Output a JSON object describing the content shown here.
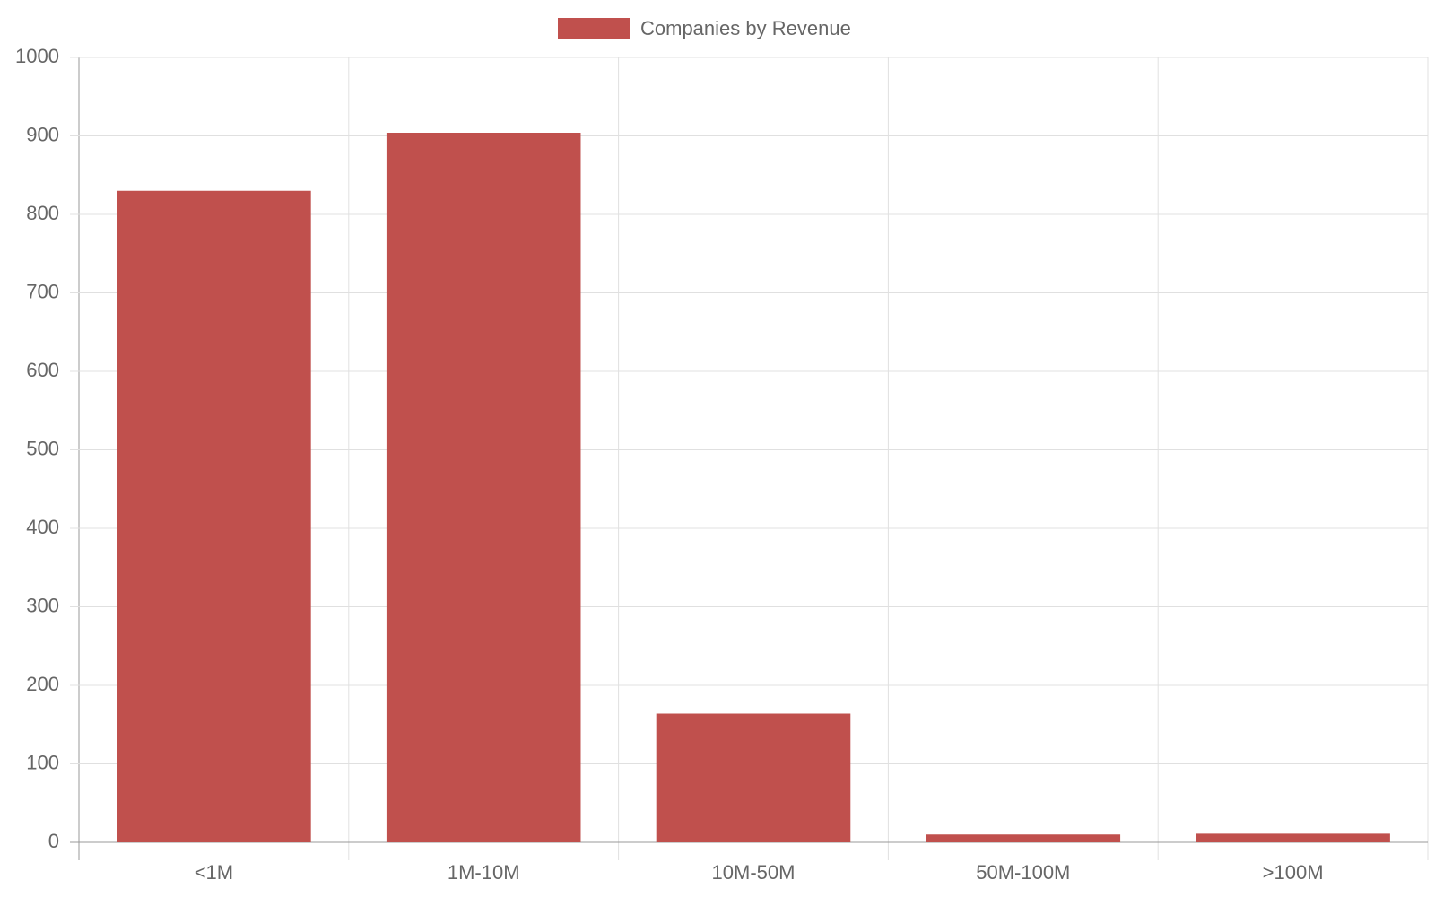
{
  "chart_data": {
    "type": "bar",
    "categories": [
      "<1M",
      "1M-10M",
      "10M-50M",
      "50M-100M",
      ">100M"
    ],
    "series": [
      {
        "name": "Companies by Revenue",
        "color": "#c0504d",
        "values": [
          830,
          904,
          164,
          10,
          11
        ]
      }
    ],
    "ylim": [
      0,
      1000
    ],
    "yticks": [
      0,
      100,
      200,
      300,
      400,
      500,
      600,
      700,
      800,
      900,
      1000
    ],
    "grid": true,
    "legend": "top"
  }
}
